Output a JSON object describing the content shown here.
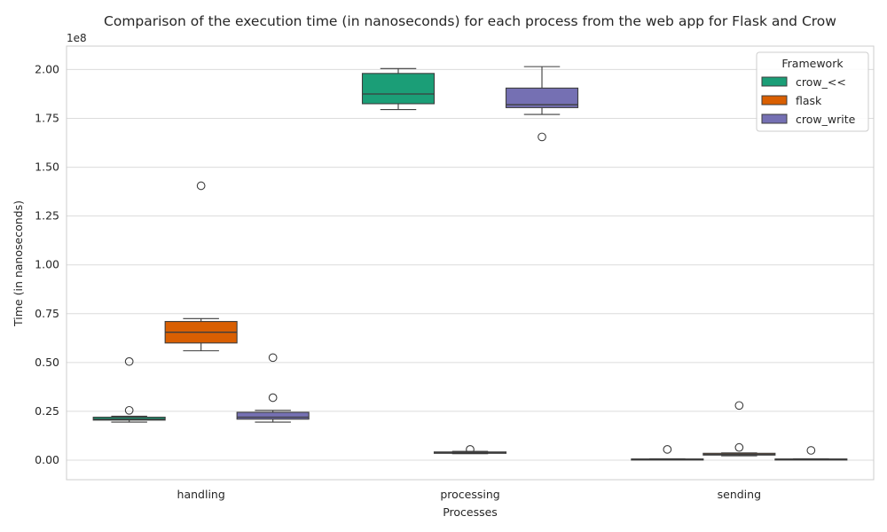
{
  "chart_data": {
    "type": "box",
    "title": "Comparison of the execution time (in nanoseconds) for each process from the web app for Flask and Crow",
    "xlabel": "Processes",
    "ylabel": "Time (in nanoseconds)",
    "y_offset_label": "1e8",
    "ylim": [
      -10000000,
      212000000
    ],
    "grid": true,
    "categories": [
      "handling",
      "processing",
      "sending"
    ],
    "y_ticks": [
      0,
      25000000,
      50000000,
      75000000,
      100000000,
      125000000,
      150000000,
      175000000,
      200000000
    ],
    "y_tick_labels": [
      "0.00",
      "0.25",
      "0.50",
      "0.75",
      "1.00",
      "1.25",
      "1.50",
      "1.75",
      "2.00"
    ],
    "legend": {
      "title": "Framework",
      "position": "top-right"
    },
    "series": [
      {
        "name": "crow_<<",
        "color": "#1b9e77",
        "boxes": [
          {
            "category": "handling",
            "whislo": 19500000,
            "q1": 20500000,
            "med": 21000000,
            "q3": 22000000,
            "whishi": 22500000,
            "fliers": [
              25500000,
              50500000
            ]
          },
          null,
          null
        ]
      },
      {
        "name": "flask",
        "color": "#d95f02",
        "boxes": [
          {
            "category": "handling",
            "whislo": 56000000,
            "q1": 60000000,
            "med": 65500000,
            "q3": 71000000,
            "whishi": 72500000,
            "fliers": [
              140500000
            ]
          },
          {
            "category": "processing",
            "whislo": 3300000,
            "q1": 3500000,
            "med": 3800000,
            "q3": 4200000,
            "whishi": 4500000,
            "fliers": [
              5500000
            ]
          },
          {
            "category": "sending",
            "whislo": 2200000,
            "q1": 2600000,
            "med": 3000000,
            "q3": 3500000,
            "whishi": 3700000,
            "fliers": [
              6500000,
              28000000
            ]
          }
        ]
      },
      {
        "name": "crow_write",
        "color": "#7570b3",
        "boxes": [
          {
            "category": "handling",
            "whislo": 19500000,
            "q1": 21000000,
            "med": 22000000,
            "q3": 24500000,
            "whishi": 25500000,
            "fliers": [
              32000000,
              52500000
            ]
          },
          {
            "category": "processing",
            "whislo": 177000000,
            "q1": 180500000,
            "med": 182000000,
            "q3": 190500000,
            "whishi": 201500000,
            "fliers": [
              165500000
            ]
          },
          {
            "category": "sending",
            "whislo": 300000,
            "q1": 400000,
            "med": 500000,
            "q3": 600000,
            "whishi": 700000,
            "fliers": [
              5000000
            ]
          }
        ]
      }
    ],
    "extra_boxes": [
      {
        "series": "crow_<<",
        "category": "processing",
        "slot": 0,
        "whislo": 179500000,
        "q1": 182500000,
        "med": 187500000,
        "q3": 198000000,
        "whishi": 200500000,
        "fliers": []
      },
      {
        "series": "crow_<<",
        "category": "sending",
        "slot": 0,
        "whislo": 300000,
        "q1": 400000,
        "med": 500000,
        "q3": 600000,
        "whishi": 700000,
        "fliers": [
          5500000
        ]
      }
    ]
  }
}
